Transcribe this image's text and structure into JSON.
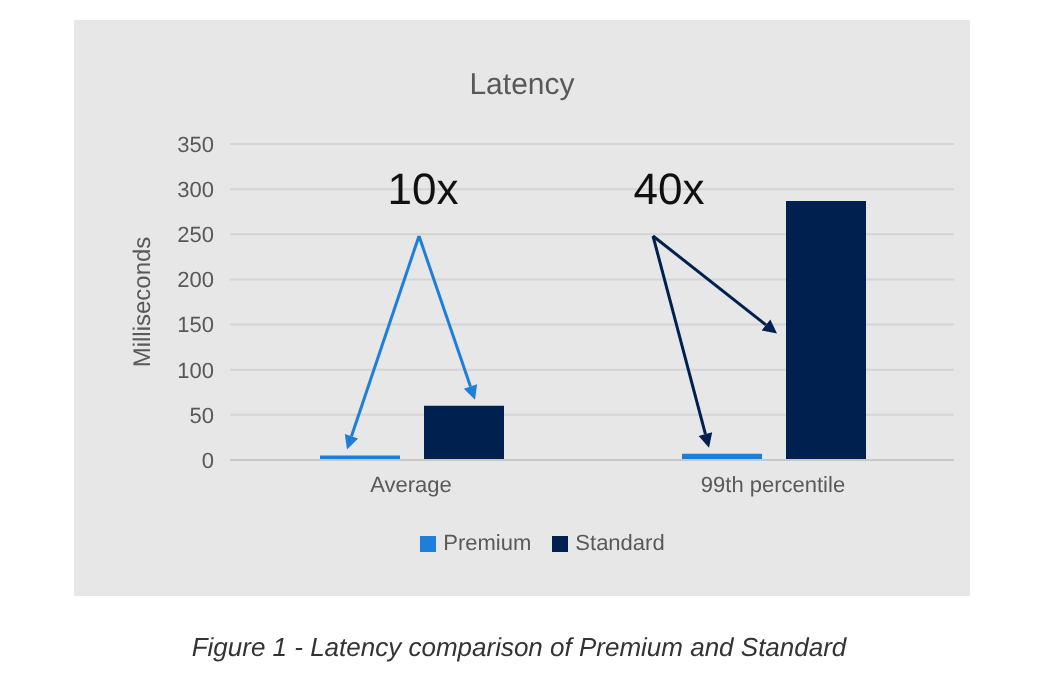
{
  "chart_data": {
    "type": "bar",
    "title": "Latency",
    "ylabel": "Milliseconds",
    "categories": [
      "Average",
      "99th percentile"
    ],
    "series": [
      {
        "name": "Premium",
        "color": "#1e7fd8",
        "values": [
          5,
          7
        ]
      },
      {
        "name": "Standard",
        "color": "#00204f",
        "values": [
          60,
          287
        ]
      }
    ],
    "ylim": [
      0,
      350
    ],
    "yticks": [
      0,
      50,
      100,
      150,
      200,
      250,
      300,
      350
    ],
    "grid": "y",
    "legend": "bottom",
    "annotations": [
      "10x",
      "40x",
      "Figure 1 - Latency comparison of Premium and Standard"
    ]
  }
}
